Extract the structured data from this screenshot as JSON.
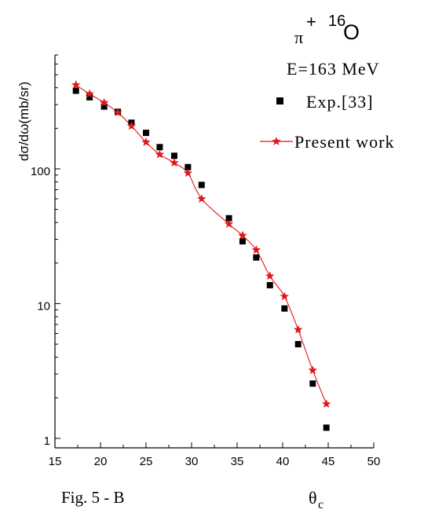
{
  "chart_data": {
    "type": "scatter",
    "title": "π+ 16O",
    "title_parts": {
      "particle": "π",
      "charge": "+",
      "mass_number": "16",
      "nucleus": "O"
    },
    "energy_label": "E=163 MeV",
    "ylabel": "dσ/dω(mb/sr)",
    "xlabel_symbol": "θ",
    "xlabel_sub": "c",
    "caption": "Fig. 5 - B",
    "xlim": [
      15,
      50
    ],
    "ylim": [
      0.85,
      700
    ],
    "yscale": "log",
    "x_ticks": [
      15,
      20,
      25,
      30,
      35,
      40,
      45,
      50
    ],
    "x_tick_labels": [
      "15",
      "20",
      "25",
      "30",
      "35",
      "40",
      "45",
      "50"
    ],
    "y_ticks": [
      1,
      10,
      100
    ],
    "y_tick_labels": [
      "1",
      "10",
      "100"
    ],
    "legend_position": "top-right",
    "grid": false,
    "series": [
      {
        "name": "Exp.[33]",
        "marker": "square",
        "color": "#000000",
        "x": [
          17.3,
          18.8,
          20.4,
          21.9,
          23.4,
          25.0,
          26.5,
          28.1,
          29.6,
          31.1,
          34.1,
          35.6,
          37.1,
          38.6,
          40.2,
          41.7,
          43.3,
          44.8
        ],
        "y": [
          380,
          340,
          290,
          265,
          220,
          185,
          145,
          125,
          103,
          76,
          43,
          29,
          22,
          13.7,
          9.2,
          5.0,
          2.55,
          1.2
        ]
      },
      {
        "name": "Present work",
        "marker": "star",
        "color": "#e0191b",
        "x": [
          17.3,
          18.8,
          20.4,
          21.9,
          23.4,
          25.0,
          26.5,
          28.1,
          29.6,
          31.1,
          34.1,
          35.6,
          37.1,
          38.6,
          40.2,
          41.7,
          43.3,
          44.8
        ],
        "y": [
          420,
          360,
          310,
          262,
          208,
          158,
          128,
          111,
          93,
          60,
          39,
          32,
          25,
          16,
          11.3,
          6.4,
          3.2,
          1.8
        ]
      }
    ]
  }
}
